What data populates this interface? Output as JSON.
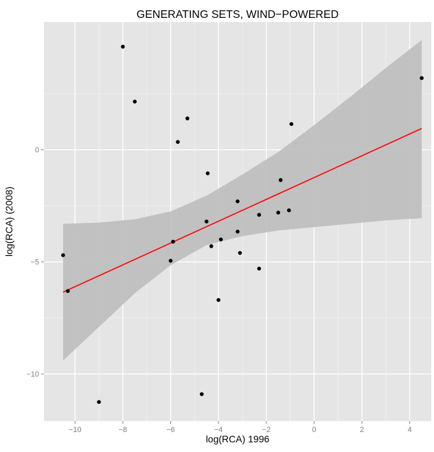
{
  "chart_data": {
    "type": "scatter",
    "title": "GENERATING SETS, WIND−POWERED",
    "xlabel": "log(RCA) 1996",
    "ylabel": "log(RCA) (2008)",
    "xlim": [
      -11.3,
      4.9
    ],
    "ylim": [
      -12.1,
      5.7
    ],
    "x_ticks": [
      {
        "value": -10,
        "label": "−10"
      },
      {
        "value": -8,
        "label": "−8"
      },
      {
        "value": -6,
        "label": "−6"
      },
      {
        "value": -4,
        "label": "−4"
      },
      {
        "value": -2,
        "label": "−2"
      },
      {
        "value": 0,
        "label": "0"
      },
      {
        "value": 2,
        "label": "2"
      },
      {
        "value": 4,
        "label": "4"
      }
    ],
    "y_ticks": [
      {
        "value": 0,
        "label": "0"
      },
      {
        "value": -5,
        "label": "−5"
      },
      {
        "value": -10,
        "label": "−10"
      }
    ],
    "grid": true,
    "points": [
      {
        "x": -10.5,
        "y": -4.7
      },
      {
        "x": -10.3,
        "y": -6.3
      },
      {
        "x": -9.0,
        "y": -11.25
      },
      {
        "x": -8.0,
        "y": 4.6
      },
      {
        "x": -7.5,
        "y": 2.15
      },
      {
        "x": -6.0,
        "y": -4.95
      },
      {
        "x": -5.9,
        "y": -4.1
      },
      {
        "x": -5.7,
        "y": 0.35
      },
      {
        "x": -5.3,
        "y": 1.4
      },
      {
        "x": -4.7,
        "y": -10.9
      },
      {
        "x": -4.5,
        "y": -3.2
      },
      {
        "x": -4.45,
        "y": -1.05
      },
      {
        "x": -4.3,
        "y": -4.3
      },
      {
        "x": -4.0,
        "y": -6.7
      },
      {
        "x": -3.9,
        "y": -4.0
      },
      {
        "x": -3.2,
        "y": -2.3
      },
      {
        "x": -3.2,
        "y": -3.65
      },
      {
        "x": -3.1,
        "y": -4.6
      },
      {
        "x": -2.3,
        "y": -2.9
      },
      {
        "x": -2.3,
        "y": -5.3
      },
      {
        "x": -1.5,
        "y": -2.8
      },
      {
        "x": -1.4,
        "y": -1.35
      },
      {
        "x": -1.05,
        "y": -2.7
      },
      {
        "x": -0.95,
        "y": 1.15
      },
      {
        "x": 4.5,
        "y": 3.2
      }
    ],
    "fit_line": {
      "x": [
        -10.5,
        4.5
      ],
      "y": [
        -6.35,
        0.95
      ],
      "color": "#ff0000"
    },
    "confidence_band": {
      "color": "#bdbdbd",
      "x": [
        -10.5,
        -9.0,
        -7.5,
        -6.0,
        -4.5,
        -3.0,
        -1.5,
        0.0,
        1.5,
        3.0,
        4.5
      ],
      "lower": [
        -9.4,
        -7.9,
        -6.4,
        -5.15,
        -4.25,
        -3.85,
        -3.6,
        -3.45,
        -3.3,
        -3.15,
        -3.05
      ],
      "upper": [
        -3.3,
        -3.25,
        -3.1,
        -2.75,
        -2.05,
        -1.1,
        -0.1,
        1.1,
        2.35,
        3.65,
        4.9
      ]
    },
    "colors": {
      "panel": "#e5e5e5",
      "grid_major": "#ffffff",
      "point": "#000000"
    }
  }
}
